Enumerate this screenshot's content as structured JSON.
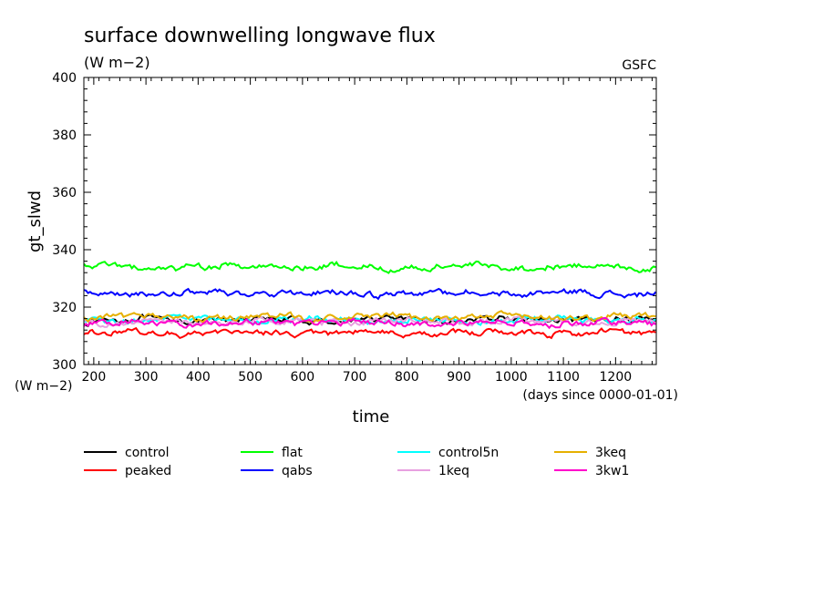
{
  "chart_data": {
    "type": "line",
    "title": "surface downwelling longwave flux",
    "units": "(W m−2)",
    "source": "GSFC",
    "ylabel": "gt_slwd",
    "y_units": "(W m−2)",
    "xlabel": "time",
    "x_units": "(days since 0000-01-01)",
    "xlim": [
      181,
      1278
    ],
    "ylim": [
      300,
      400
    ],
    "x_ticks": [
      200,
      300,
      400,
      500,
      600,
      700,
      800,
      900,
      1000,
      1100,
      1200
    ],
    "y_ticks": [
      300,
      320,
      340,
      360,
      380,
      400
    ],
    "legend_placement": "bottom",
    "series": [
      {
        "name": "control",
        "color": "#000000",
        "mean": 315.5,
        "amp": 1.1
      },
      {
        "name": "peaked",
        "color": "#ff0000",
        "mean": 311.0,
        "amp": 1.1
      },
      {
        "name": "flat",
        "color": "#00ff00",
        "mean": 334.0,
        "amp": 1.2
      },
      {
        "name": "qabs",
        "color": "#0000ff",
        "mean": 324.8,
        "amp": 1.1
      },
      {
        "name": "control5n",
        "color": "#00ffff",
        "mean": 315.5,
        "amp": 1.1
      },
      {
        "name": "1keq",
        "color": "#e8a0e0",
        "mean": 315.0,
        "amp": 1.1
      },
      {
        "name": "3keq",
        "color": "#e6b000",
        "mean": 316.5,
        "amp": 1.1
      },
      {
        "name": "3kw1",
        "color": "#ff00cc",
        "mean": 314.5,
        "amp": 1.1
      }
    ]
  }
}
